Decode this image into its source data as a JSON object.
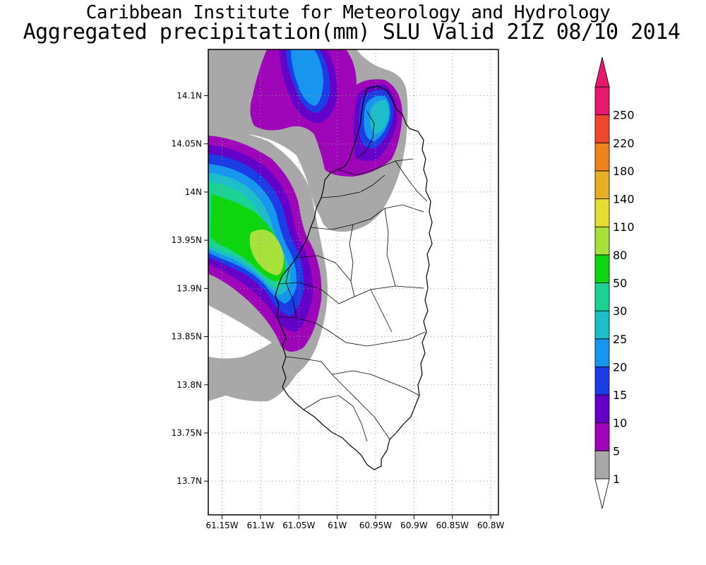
{
  "title": {
    "line1": "Caribbean Institute for Meteorology and Hydrology",
    "line2": "Aggregated precipitation(mm) SLU Valid 21Z 08/10 2014"
  },
  "map": {
    "lon_range": [
      -61.168,
      -60.79
    ],
    "lat_range": [
      13.665,
      14.148
    ],
    "lat_ticks": [
      {
        "value": 14.1,
        "label": "14.1N"
      },
      {
        "value": 14.05,
        "label": "14.05N"
      },
      {
        "value": 14.0,
        "label": "14N"
      },
      {
        "value": 13.95,
        "label": "13.95N"
      },
      {
        "value": 13.9,
        "label": "13.9N"
      },
      {
        "value": 13.85,
        "label": "13.85N"
      },
      {
        "value": 13.8,
        "label": "13.8N"
      },
      {
        "value": 13.75,
        "label": "13.75N"
      },
      {
        "value": 13.7,
        "label": "13.7N"
      }
    ],
    "lon_ticks": [
      {
        "value": -61.15,
        "label": "61.15W"
      },
      {
        "value": -61.1,
        "label": "61.1W"
      },
      {
        "value": -61.05,
        "label": "61.05W"
      },
      {
        "value": -61.0,
        "label": "61W"
      },
      {
        "value": -60.95,
        "label": "60.95W"
      },
      {
        "value": -60.9,
        "label": "60.9W"
      },
      {
        "value": -60.85,
        "label": "60.85W"
      },
      {
        "value": -60.8,
        "label": "60.8W"
      }
    ],
    "gridlines": "dotted"
  },
  "colorbar": {
    "bins": [
      {
        "label": "1",
        "color": "#a8a8a8"
      },
      {
        "label": "5",
        "color": "#9e04b8"
      },
      {
        "label": "10",
        "color": "#6400c8"
      },
      {
        "label": "15",
        "color": "#1c3ce6"
      },
      {
        "label": "20",
        "color": "#1796ef"
      },
      {
        "label": "25",
        "color": "#1cbec8"
      },
      {
        "label": "30",
        "color": "#1ad291"
      },
      {
        "label": "50",
        "color": "#0ed60e"
      },
      {
        "label": "80",
        "color": "#a8e13a"
      },
      {
        "label": "110",
        "color": "#e6dc32"
      },
      {
        "label": "140",
        "color": "#e6b024"
      },
      {
        "label": "180",
        "color": "#f0821e"
      },
      {
        "label": "220",
        "color": "#f0462c"
      },
      {
        "label": "250",
        "color": "#e8186e"
      }
    ],
    "under_color": "#ffffff",
    "over_color": "#e8186e"
  },
  "chart_data": {
    "type": "heatmap",
    "title": "Aggregated precipitation(mm) SLU Valid 21Z 08/10 2014",
    "xlabel": "",
    "ylabel": "",
    "xlim": [
      -61.168,
      -60.79
    ],
    "ylim": [
      13.665,
      14.148
    ],
    "variable": "precipitation",
    "units": "mm",
    "levels": [
      1,
      5,
      10,
      15,
      20,
      25,
      30,
      50,
      80,
      110,
      140,
      180,
      220,
      250
    ],
    "features": [
      {
        "lon": -61.09,
        "lat": 13.935,
        "max_level": 80
      },
      {
        "lon": -61.02,
        "lat": 14.115,
        "max_level": 20
      },
      {
        "lon": -60.945,
        "lat": 14.085,
        "max_level": 25
      }
    ]
  }
}
